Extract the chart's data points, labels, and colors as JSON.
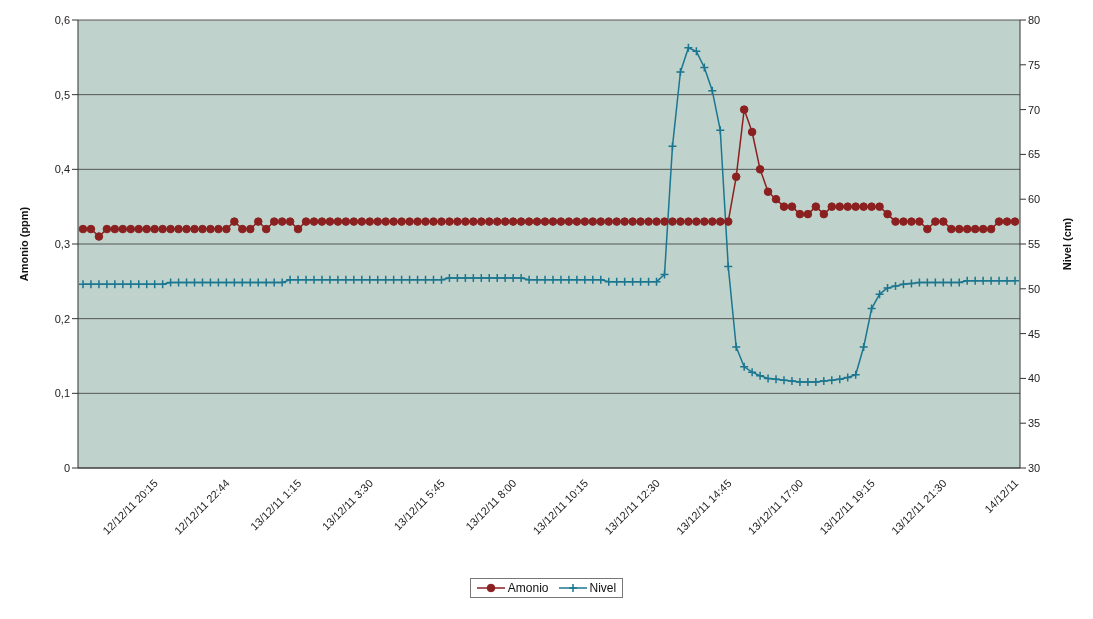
{
  "chart_data": {
    "type": "line",
    "ylabel": "Amonio (ppm)",
    "y2label": "Nivel (cm)",
    "categories": [
      null,
      null,
      null,
      null,
      null,
      null,
      null,
      null,
      null,
      "12/12/11 20:15",
      null,
      null,
      null,
      null,
      null,
      null,
      null,
      null,
      "12/12/11 22:44",
      null,
      null,
      null,
      null,
      null,
      null,
      null,
      null,
      "13/12/11 1:15",
      null,
      null,
      null,
      null,
      null,
      null,
      null,
      null,
      "13/12/11 3:30",
      null,
      null,
      null,
      null,
      null,
      null,
      null,
      null,
      "13/12/11 5:45",
      null,
      null,
      null,
      null,
      null,
      null,
      null,
      null,
      "13/12/11 8:00",
      null,
      null,
      null,
      null,
      null,
      null,
      null,
      null,
      "13/12/11 10:15",
      null,
      null,
      null,
      null,
      null,
      null,
      null,
      null,
      "13/12/11 12:30",
      null,
      null,
      null,
      null,
      null,
      null,
      null,
      null,
      "13/12/11 14:45",
      null,
      null,
      null,
      null,
      null,
      null,
      null,
      null,
      "13/12/11 17:00",
      null,
      null,
      null,
      null,
      null,
      null,
      null,
      null,
      "13/12/11 19:15",
      null,
      null,
      null,
      null,
      null,
      null,
      null,
      null,
      "13/12/11 21:30",
      null,
      null,
      null,
      null,
      null,
      null,
      null,
      null,
      "14/12/11"
    ],
    "series": [
      {
        "name": "Amonio",
        "color": "#8b2020",
        "marker": "circle",
        "values": [
          0.32,
          0.32,
          0.31,
          0.32,
          0.32,
          0.32,
          0.32,
          0.32,
          0.32,
          0.32,
          0.32,
          0.32,
          0.32,
          0.32,
          0.32,
          0.32,
          0.32,
          0.32,
          0.32,
          0.33,
          0.32,
          0.32,
          0.33,
          0.32,
          0.33,
          0.33,
          0.33,
          0.32,
          0.33,
          0.33,
          0.33,
          0.33,
          0.33,
          0.33,
          0.33,
          0.33,
          0.33,
          0.33,
          0.33,
          0.33,
          0.33,
          0.33,
          0.33,
          0.33,
          0.33,
          0.33,
          0.33,
          0.33,
          0.33,
          0.33,
          0.33,
          0.33,
          0.33,
          0.33,
          0.33,
          0.33,
          0.33,
          0.33,
          0.33,
          0.33,
          0.33,
          0.33,
          0.33,
          0.33,
          0.33,
          0.33,
          0.33,
          0.33,
          0.33,
          0.33,
          0.33,
          0.33,
          0.33,
          0.33,
          0.33,
          0.33,
          0.33,
          0.33,
          0.33,
          0.33,
          0.33,
          0.33,
          0.39,
          0.48,
          0.45,
          0.4,
          0.37,
          0.36,
          0.35,
          0.35,
          0.34,
          0.34,
          0.35,
          0.34,
          0.35,
          0.35,
          0.35,
          0.35,
          0.35,
          0.35,
          0.35,
          0.34,
          0.33,
          0.33,
          0.33,
          0.33,
          0.32,
          0.33,
          0.33,
          0.32,
          0.32,
          0.32,
          0.32,
          0.32,
          0.32,
          0.33,
          0.33,
          0.33
        ]
      },
      {
        "name": "Nivel",
        "color": "#1b7690",
        "marker": "cross",
        "axis": "y2",
        "values": [
          50.5,
          50.5,
          50.5,
          50.5,
          50.5,
          50.5,
          50.5,
          50.5,
          50.5,
          50.5,
          50.5,
          50.7,
          50.7,
          50.7,
          50.7,
          50.7,
          50.7,
          50.7,
          50.7,
          50.7,
          50.7,
          50.7,
          50.7,
          50.7,
          50.7,
          50.7,
          51.0,
          51.0,
          51.0,
          51.0,
          51.0,
          51.0,
          51.0,
          51.0,
          51.0,
          51.0,
          51.0,
          51.0,
          51.0,
          51.0,
          51.0,
          51.0,
          51.0,
          51.0,
          51.0,
          51.0,
          51.2,
          51.2,
          51.2,
          51.2,
          51.2,
          51.2,
          51.2,
          51.2,
          51.2,
          51.2,
          51.0,
          51.0,
          51.0,
          51.0,
          51.0,
          51.0,
          51.0,
          51.0,
          51.0,
          51.0,
          50.8,
          50.8,
          50.8,
          50.8,
          50.8,
          50.8,
          50.8,
          51.6,
          65.9,
          74.2,
          76.9,
          76.5,
          74.7,
          72.1,
          67.7,
          52.5,
          43.5,
          41.3,
          40.7,
          40.3,
          40.0,
          39.9,
          39.8,
          39.7,
          39.6,
          39.6,
          39.6,
          39.7,
          39.8,
          39.9,
          40.1,
          40.4,
          43.5,
          47.8,
          49.4,
          50.1,
          50.3,
          50.5,
          50.6,
          50.7,
          50.7,
          50.7,
          50.7,
          50.7,
          50.7,
          50.9,
          50.9,
          50.9,
          50.9,
          50.9,
          50.9,
          50.9
        ]
      }
    ],
    "ylim": [
      0,
      0.6
    ],
    "yticks": [
      0,
      {
        "value": 0.1,
        "label": "0,1"
      },
      {
        "value": 0.2,
        "label": "0,2"
      },
      {
        "value": 0.3,
        "label": "0,3"
      },
      {
        "value": 0.4,
        "label": "0,4"
      },
      {
        "value": 0.5,
        "label": "0,5"
      },
      {
        "value": 0.6,
        "label": "0,6"
      }
    ],
    "y2lim": [
      30,
      80
    ],
    "y2ticks": [
      30,
      35,
      40,
      45,
      50,
      55,
      60,
      65,
      70,
      75,
      80
    ],
    "grid": "y",
    "legend": "bottom",
    "line_style": "solid"
  }
}
